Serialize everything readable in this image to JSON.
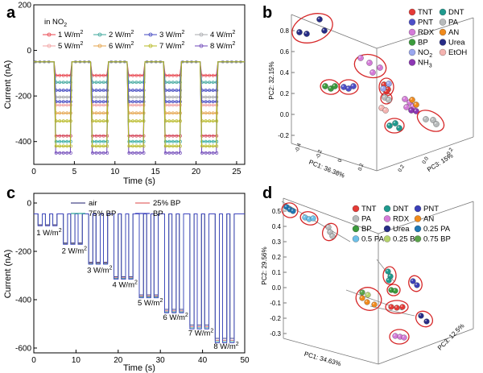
{
  "panel_labels": {
    "a": "a",
    "b": "b",
    "c": "c",
    "d": "d"
  },
  "chart_data": [
    {
      "id": "a",
      "type": "line",
      "title": "",
      "xlabel": "Time (s)",
      "ylabel": "Current (nA)",
      "xlim": [
        0,
        26
      ],
      "ylim": [
        -500,
        200
      ],
      "xticks": [
        "0",
        "5",
        "10",
        "15",
        "20",
        "25"
      ],
      "yticks": [
        "200",
        "0",
        "-200",
        "-400"
      ],
      "legend_title": "in NO",
      "legend_title_sub": "2",
      "pulses": [
        [
          2.5,
          4.7
        ],
        [
          7.0,
          9.2
        ],
        [
          11.5,
          13.7
        ],
        [
          16.0,
          18.2
        ],
        [
          20.5,
          22.7
        ]
      ],
      "baseline": -50,
      "series": [
        {
          "name": "1 W/m",
          "sup": "2",
          "color": "#e8424b",
          "on": -110
        },
        {
          "name": "2 W/m",
          "sup": "2",
          "color": "#3aa59a",
          "on": -140
        },
        {
          "name": "3 W/m",
          "sup": "2",
          "color": "#3f45c0",
          "on": -175
        },
        {
          "name": "4 W/m",
          "sup": "2",
          "color": "#a7a9ad",
          "on": -205
        },
        {
          "name": "5 W/m",
          "sup": "2",
          "color": "#f0a0a0",
          "on": -240
        },
        {
          "name": "6 W/m",
          "sup": "2",
          "color": "#e4a34a",
          "on": -275
        },
        {
          "name": "7 W/m",
          "sup": "2",
          "color": "#b6b820",
          "on": -310
        },
        {
          "name": "8 W/m",
          "sup": "2",
          "color": "#6f47b8",
          "on": -450
        }
      ],
      "extra_levels": [
        {
          "color": "#3f45c0",
          "on": -225
        },
        {
          "color": "#d23b4f",
          "on": -375
        },
        {
          "color": "#30a99e",
          "on": -400
        },
        {
          "color": "#b6b820",
          "on": -420
        }
      ]
    },
    {
      "id": "b",
      "type": "scatter",
      "xlabel": "PC1: 36.38%",
      "ylabel": "PC2: 32.15%",
      "zlabel": "PC3: 15%",
      "yticks": [
        "0.8",
        "0.6",
        "0.4",
        "0.2",
        "0.0",
        "-0.2"
      ],
      "xticks": [
        "-0.4",
        "-0.2",
        "0",
        "0.2"
      ],
      "zticks": [
        "0.2",
        "0.0",
        "-0.2"
      ],
      "legend": [
        {
          "label": "TNT",
          "color": "#e53a36"
        },
        {
          "label": "DNT",
          "color": "#1f9a8e"
        },
        {
          "label": "PNT",
          "color": "#4d4fc8"
        },
        {
          "label": "PA",
          "color": "#b7babb"
        },
        {
          "label": "RDX",
          "color": "#d47ad8"
        },
        {
          "label": "AN",
          "color": "#f08a1c"
        },
        {
          "label": "BP",
          "color": "#3b9b3c"
        },
        {
          "label": "Urea",
          "color": "#262c86"
        },
        {
          "label": "NO",
          "sub": "2",
          "color": "#9aa7ef"
        },
        {
          "label": "EtOH",
          "color": "#f4b3b0"
        },
        {
          "label": "NH",
          "sub": "3",
          "color": "#8c36b3"
        }
      ]
    },
    {
      "id": "c",
      "type": "line",
      "xlabel": "Time (s)",
      "ylabel": "Current (nA)",
      "xlim": [
        0,
        50
      ],
      "ylim": [
        -620,
        40
      ],
      "xticks": [
        "0",
        "10",
        "20",
        "30",
        "40",
        "50"
      ],
      "yticks": [
        "0",
        "-200",
        "-400",
        "-600"
      ],
      "series": [
        {
          "name": "air",
          "color": "#4a4a8a"
        },
        {
          "name": "25% BP",
          "color": "#e36a6a"
        },
        {
          "name": "75% BP",
          "color": "#34a89a"
        },
        {
          "name": "BP",
          "color": "#3f45c0"
        }
      ],
      "annotations": [
        "1 W/m",
        "2 W/m",
        "3 W/m",
        "4 W/m",
        "5 W/m",
        "6 W/m",
        "7 W/m",
        "8 W/m"
      ],
      "annotation_sup": "2",
      "groups": [
        {
          "start": 1.0,
          "level": -90
        },
        {
          "start": 7.0,
          "level": -165
        },
        {
          "start": 13.0,
          "level": -245
        },
        {
          "start": 19.0,
          "level": -305
        },
        {
          "start": 25.0,
          "level": -380
        },
        {
          "start": 31.0,
          "level": -440
        },
        {
          "start": 37.0,
          "level": -505
        },
        {
          "start": 43.0,
          "level": -560
        }
      ],
      "baseline": -45
    },
    {
      "id": "d",
      "type": "scatter",
      "xlabel": "PC1: 34.63%",
      "ylabel": "PC2: 29.56%",
      "zlabel": "PC3: 12.5%",
      "yticks": [
        "0.5",
        "0.4",
        "0.3",
        "0.2",
        "0.1",
        "0.0",
        "-0.1",
        "-0.2",
        "-0.3"
      ],
      "legend": [
        {
          "label": "TNT",
          "color": "#e53a36"
        },
        {
          "label": "DNT",
          "color": "#1f9a8e"
        },
        {
          "label": "PNT",
          "color": "#3a3fb8"
        },
        {
          "label": "PA",
          "color": "#b7babb"
        },
        {
          "label": "RDX",
          "color": "#d47ad8"
        },
        {
          "label": "AN",
          "color": "#f08a1c"
        },
        {
          "label": "BP",
          "color": "#3b9b3c"
        },
        {
          "label": "Urea",
          "color": "#262c86"
        },
        {
          "label": "0.25 PA",
          "color": "#1f77b4"
        },
        {
          "label": "0.5 PA",
          "color": "#6cc0e8"
        },
        {
          "label": "0.25 BP",
          "color": "#b5d36b"
        },
        {
          "label": "0.75 BP",
          "color": "#5aa34a"
        }
      ]
    }
  ]
}
